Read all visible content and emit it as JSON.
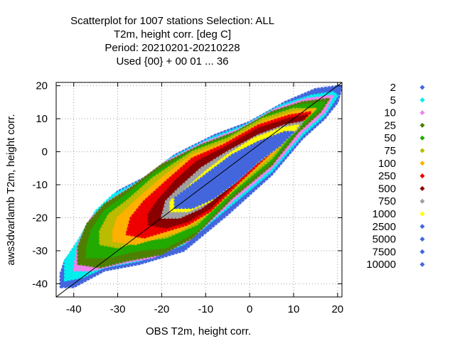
{
  "chart_data": {
    "type": "scatter",
    "title": [
      "Scatterplot for 1007 stations Selection: ALL",
      "T2m, height corr. [deg C]",
      "Period: 20210201-20210228",
      "Used {00} + 00 01 ... 36"
    ],
    "xlabel": "OBS T2m, height corr.",
    "ylabel": "aws3dvarlamb T2m, height corr.",
    "xlim": [
      -44,
      21
    ],
    "ylim": [
      -44,
      21
    ],
    "xticks": [
      -40,
      -30,
      -20,
      -10,
      0,
      10,
      20
    ],
    "yticks": [
      -40,
      -30,
      -20,
      -10,
      0,
      10,
      20
    ],
    "grid": true,
    "grid_style": "dotted",
    "diagonal_line": true,
    "legend_position": "right",
    "legend": [
      {
        "label": "2",
        "color": "#4466dd"
      },
      {
        "label": "5",
        "color": "#00eeee"
      },
      {
        "label": "10",
        "color": "#ee82ee"
      },
      {
        "label": "25",
        "color": "#4d7f00"
      },
      {
        "label": "50",
        "color": "#22aa00"
      },
      {
        "label": "75",
        "color": "#bbbb00"
      },
      {
        "label": "100",
        "color": "#ffb000"
      },
      {
        "label": "250",
        "color": "#ee0000"
      },
      {
        "label": "500",
        "color": "#880000"
      },
      {
        "label": "750",
        "color": "#a0a0a0"
      },
      {
        "label": "1000",
        "color": "#ffff00"
      },
      {
        "label": "2500",
        "color": "#4466dd"
      },
      {
        "label": "5000",
        "color": "#4466dd"
      },
      {
        "label": "7500",
        "color": "#4466dd"
      },
      {
        "label": "10000",
        "color": "#4466dd"
      }
    ],
    "density_bands": [
      {
        "threshold": 2,
        "color": "#4466dd",
        "path": [
          [
            -43,
            -41
          ],
          [
            -40,
            -41
          ],
          [
            -33,
            -36
          ],
          [
            -25,
            -34
          ],
          [
            -15,
            -30
          ],
          [
            -5,
            -19
          ],
          [
            5,
            -7
          ],
          [
            12,
            4
          ],
          [
            17,
            10
          ],
          [
            20,
            15
          ],
          [
            21,
            20
          ],
          [
            15,
            19
          ],
          [
            8,
            15
          ],
          [
            0,
            9
          ],
          [
            -8,
            5
          ],
          [
            -17,
            -1
          ],
          [
            -24,
            -8
          ],
          [
            -30,
            -12
          ],
          [
            -34,
            -18
          ],
          [
            -38,
            -27
          ],
          [
            -42,
            -33
          ],
          [
            -43,
            -37
          ]
        ]
      },
      {
        "threshold": 5,
        "color": "#00eeee",
        "path": [
          [
            -42,
            -39
          ],
          [
            -38,
            -38
          ],
          [
            -33,
            -35
          ],
          [
            -25,
            -33
          ],
          [
            -15,
            -28
          ],
          [
            -5,
            -17
          ],
          [
            5,
            -6
          ],
          [
            12,
            5
          ],
          [
            17,
            11
          ],
          [
            20,
            17
          ],
          [
            19,
            18
          ],
          [
            14,
            17
          ],
          [
            7,
            14
          ],
          [
            -1,
            8
          ],
          [
            -9,
            4
          ],
          [
            -18,
            -2
          ],
          [
            -25,
            -9
          ],
          [
            -31,
            -13
          ],
          [
            -35,
            -18
          ],
          [
            -39,
            -27
          ],
          [
            -42,
            -33
          ]
        ]
      },
      {
        "threshold": 10,
        "color": "#ee82ee",
        "path": [
          [
            -40,
            -36
          ],
          [
            -36,
            -36
          ],
          [
            -30,
            -34
          ],
          [
            -22,
            -32
          ],
          [
            -14,
            -27
          ],
          [
            -4,
            -15
          ],
          [
            5,
            -5
          ],
          [
            12,
            6
          ],
          [
            17,
            12
          ],
          [
            19,
            17
          ],
          [
            13,
            16
          ],
          [
            6,
            13
          ],
          [
            -2,
            7
          ],
          [
            -10,
            3
          ],
          [
            -19,
            -3
          ],
          [
            -26,
            -10
          ],
          [
            -32,
            -15
          ],
          [
            -36,
            -20
          ],
          [
            -39,
            -28
          ]
        ]
      },
      {
        "threshold": 25,
        "color": "#4d7f00",
        "path": [
          [
            -39,
            -34
          ],
          [
            -34,
            -35
          ],
          [
            -28,
            -33
          ],
          [
            -20,
            -31
          ],
          [
            -13,
            -26
          ],
          [
            -4,
            -14
          ],
          [
            5,
            -4
          ],
          [
            11,
            6
          ],
          [
            16,
            12
          ],
          [
            18,
            16
          ],
          [
            12,
            15
          ],
          [
            5,
            12
          ],
          [
            -3,
            6
          ],
          [
            -11,
            2
          ],
          [
            -20,
            -4
          ],
          [
            -27,
            -11
          ],
          [
            -33,
            -16
          ],
          [
            -37,
            -22
          ],
          [
            -39,
            -29
          ]
        ]
      },
      {
        "threshold": 50,
        "color": "#22aa00",
        "path": [
          [
            -37,
            -32
          ],
          [
            -32,
            -32
          ],
          [
            -26,
            -30
          ],
          [
            -19,
            -29
          ],
          [
            -12,
            -24
          ],
          [
            -4,
            -13
          ],
          [
            5,
            -3
          ],
          [
            11,
            7
          ],
          [
            16,
            13
          ],
          [
            17,
            15
          ],
          [
            11,
            14
          ],
          [
            4,
            11
          ],
          [
            -4,
            5
          ],
          [
            -12,
            1
          ],
          [
            -21,
            -6
          ],
          [
            -28,
            -13
          ],
          [
            -33,
            -18
          ],
          [
            -36,
            -24
          ],
          [
            -37,
            -29
          ]
        ]
      },
      {
        "threshold": 75,
        "color": "#bbbb00",
        "path": [
          [
            -34,
            -28
          ],
          [
            -30,
            -29
          ],
          [
            -25,
            -27
          ],
          [
            -19,
            -26
          ],
          [
            -12,
            -22
          ],
          [
            -4,
            -12
          ],
          [
            5,
            -2
          ],
          [
            11,
            8
          ],
          [
            15,
            13
          ],
          [
            10,
            13
          ],
          [
            3,
            10
          ],
          [
            -5,
            4
          ],
          [
            -13,
            0
          ],
          [
            -22,
            -8
          ],
          [
            -28,
            -15
          ],
          [
            -32,
            -19
          ],
          [
            -34,
            -24
          ]
        ]
      },
      {
        "threshold": 100,
        "color": "#ffb000",
        "path": [
          [
            -31,
            -27
          ],
          [
            -26,
            -28
          ],
          [
            -21,
            -26
          ],
          [
            -16,
            -24
          ],
          [
            -11,
            -20
          ],
          [
            -4,
            -11
          ],
          [
            5,
            -1
          ],
          [
            11,
            8
          ],
          [
            15,
            13
          ],
          [
            10,
            12
          ],
          [
            3,
            9
          ],
          [
            -5,
            3
          ],
          [
            -13,
            -1
          ],
          [
            -20,
            -8
          ],
          [
            -26,
            -15
          ],
          [
            -30,
            -20
          ],
          [
            -31,
            -24
          ]
        ]
      },
      {
        "threshold": 250,
        "color": "#ee0000",
        "path": [
          [
            -28,
            -25
          ],
          [
            -24,
            -26
          ],
          [
            -19,
            -24
          ],
          [
            -14,
            -22
          ],
          [
            -9,
            -18
          ],
          [
            -3,
            -10
          ],
          [
            5,
            0
          ],
          [
            11,
            8
          ],
          [
            14,
            12
          ],
          [
            9,
            11
          ],
          [
            2,
            8
          ],
          [
            -6,
            2
          ],
          [
            -13,
            -2
          ],
          [
            -19,
            -9
          ],
          [
            -24,
            -15
          ],
          [
            -27,
            -20
          ]
        ]
      },
      {
        "threshold": 500,
        "color": "#880000",
        "path": [
          [
            -23,
            -22
          ],
          [
            -19,
            -23
          ],
          [
            -14,
            -21
          ],
          [
            -9,
            -17
          ],
          [
            -3,
            -9
          ],
          [
            4,
            0
          ],
          [
            10,
            7
          ],
          [
            13,
            11
          ],
          [
            9,
            10
          ],
          [
            2,
            7
          ],
          [
            -6,
            1
          ],
          [
            -12,
            -3
          ],
          [
            -17,
            -9
          ],
          [
            -21,
            -15
          ],
          [
            -23,
            -19
          ]
        ]
      },
      {
        "threshold": 750,
        "color": "#a0a0a0",
        "path": [
          [
            -20,
            -20
          ],
          [
            -16,
            -20
          ],
          [
            -11,
            -17
          ],
          [
            -6,
            -12
          ],
          [
            0,
            -5
          ],
          [
            6,
            1
          ],
          [
            11,
            7
          ],
          [
            12,
            9
          ],
          [
            8,
            8
          ],
          [
            2,
            5
          ],
          [
            -5,
            0
          ],
          [
            -11,
            -5
          ],
          [
            -16,
            -11
          ],
          [
            -19,
            -15
          ]
        ]
      },
      {
        "threshold": 1000,
        "color": "#ffff00",
        "path": [
          [
            -18,
            -18
          ],
          [
            -14,
            -18
          ],
          [
            -9,
            -15
          ],
          [
            -4,
            -10
          ],
          [
            1,
            -4
          ],
          [
            6,
            1
          ],
          [
            10,
            6
          ],
          [
            11,
            8
          ],
          [
            7,
            7
          ],
          [
            1,
            4
          ],
          [
            -5,
            -1
          ],
          [
            -10,
            -6
          ],
          [
            -15,
            -12
          ],
          [
            -18,
            -15
          ]
        ]
      },
      {
        "threshold": 2500,
        "color": "#4466dd",
        "path": [
          [
            -17,
            -17
          ],
          [
            -13,
            -17
          ],
          [
            -8,
            -14
          ],
          [
            -3,
            -9
          ],
          [
            2,
            -3
          ],
          [
            7,
            2
          ],
          [
            10,
            6
          ],
          [
            8,
            6
          ],
          [
            2,
            3
          ],
          [
            -4,
            -1
          ],
          [
            -9,
            -6
          ],
          [
            -14,
            -11
          ],
          [
            -17,
            -14
          ]
        ]
      }
    ]
  }
}
